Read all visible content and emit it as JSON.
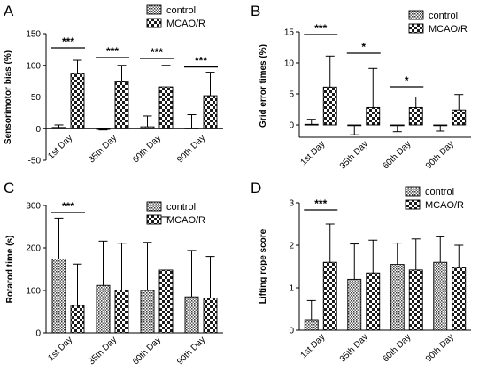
{
  "chart_data": [
    {
      "panel": "A",
      "type": "bar",
      "categories": [
        "1st Day",
        "35th Day",
        "60th Day",
        "90th Day"
      ],
      "ylabel": "Sensorimotor bias (%)",
      "ylim": [
        -50,
        150
      ],
      "yticks": [
        "-50",
        "0",
        "50",
        "100",
        "150"
      ],
      "legend_position": "top-right",
      "series": [
        {
          "name": "control",
          "values": [
            2,
            -1,
            3,
            1
          ],
          "errors": [
            4,
            1,
            17,
            21
          ]
        },
        {
          "name": "MCAO/R",
          "values": [
            87,
            74,
            66,
            52
          ],
          "errors": [
            21,
            26,
            34,
            37
          ]
        }
      ],
      "significance": [
        "***",
        "***",
        "***",
        "***"
      ]
    },
    {
      "panel": "B",
      "type": "bar",
      "categories": [
        "1st Day",
        "35th Day",
        "60th Day",
        "90th Day"
      ],
      "ylabel": "Grid error times (%)",
      "ylim": [
        -2,
        15
      ],
      "yticks": [
        "0",
        "5",
        "10",
        "15"
      ],
      "legend_position": "top-right",
      "series": [
        {
          "name": "control",
          "values": [
            0.1,
            -0.1,
            -0.1,
            -0.1
          ],
          "errors": [
            0.8,
            1.5,
            1.0,
            0.9
          ]
        },
        {
          "name": "MCAO/R",
          "values": [
            6.1,
            2.8,
            2.8,
            2.4
          ],
          "errors": [
            5.0,
            6.3,
            1.7,
            2.5
          ]
        }
      ],
      "significance": [
        "***",
        "*",
        "*",
        ""
      ]
    },
    {
      "panel": "C",
      "type": "bar",
      "categories": [
        "1st Day",
        "35th Day",
        "60th Day",
        "90th Day"
      ],
      "ylabel": "Rotarod time (s)",
      "ylim": [
        0,
        300
      ],
      "yticks": [
        "0",
        "100",
        "200",
        "300"
      ],
      "legend_position": "top-right",
      "series": [
        {
          "name": "control",
          "values": [
            174,
            112,
            100,
            85
          ],
          "errors": [
            96,
            104,
            113,
            109
          ]
        },
        {
          "name": "MCAO/R",
          "values": [
            65,
            101,
            148,
            82
          ],
          "errors": [
            97,
            110,
            125,
            98
          ]
        }
      ],
      "significance": [
        "***",
        "",
        "",
        ""
      ]
    },
    {
      "panel": "D",
      "type": "bar",
      "categories": [
        "1st Day",
        "35th Day",
        "60th Day",
        "90th Day"
      ],
      "ylabel": "Lifting rope score",
      "ylim": [
        0,
        3
      ],
      "yticks": [
        "0",
        "1",
        "2",
        "3"
      ],
      "legend_position": "top-right",
      "series": [
        {
          "name": "control",
          "values": [
            0.25,
            1.2,
            1.55,
            1.6
          ],
          "errors": [
            0.45,
            0.83,
            0.5,
            0.6
          ]
        },
        {
          "name": "MCAO/R",
          "values": [
            1.6,
            1.35,
            1.42,
            1.48
          ],
          "errors": [
            0.9,
            0.77,
            0.73,
            0.52
          ]
        }
      ],
      "significance": [
        "***",
        "",
        "",
        ""
      ]
    }
  ]
}
